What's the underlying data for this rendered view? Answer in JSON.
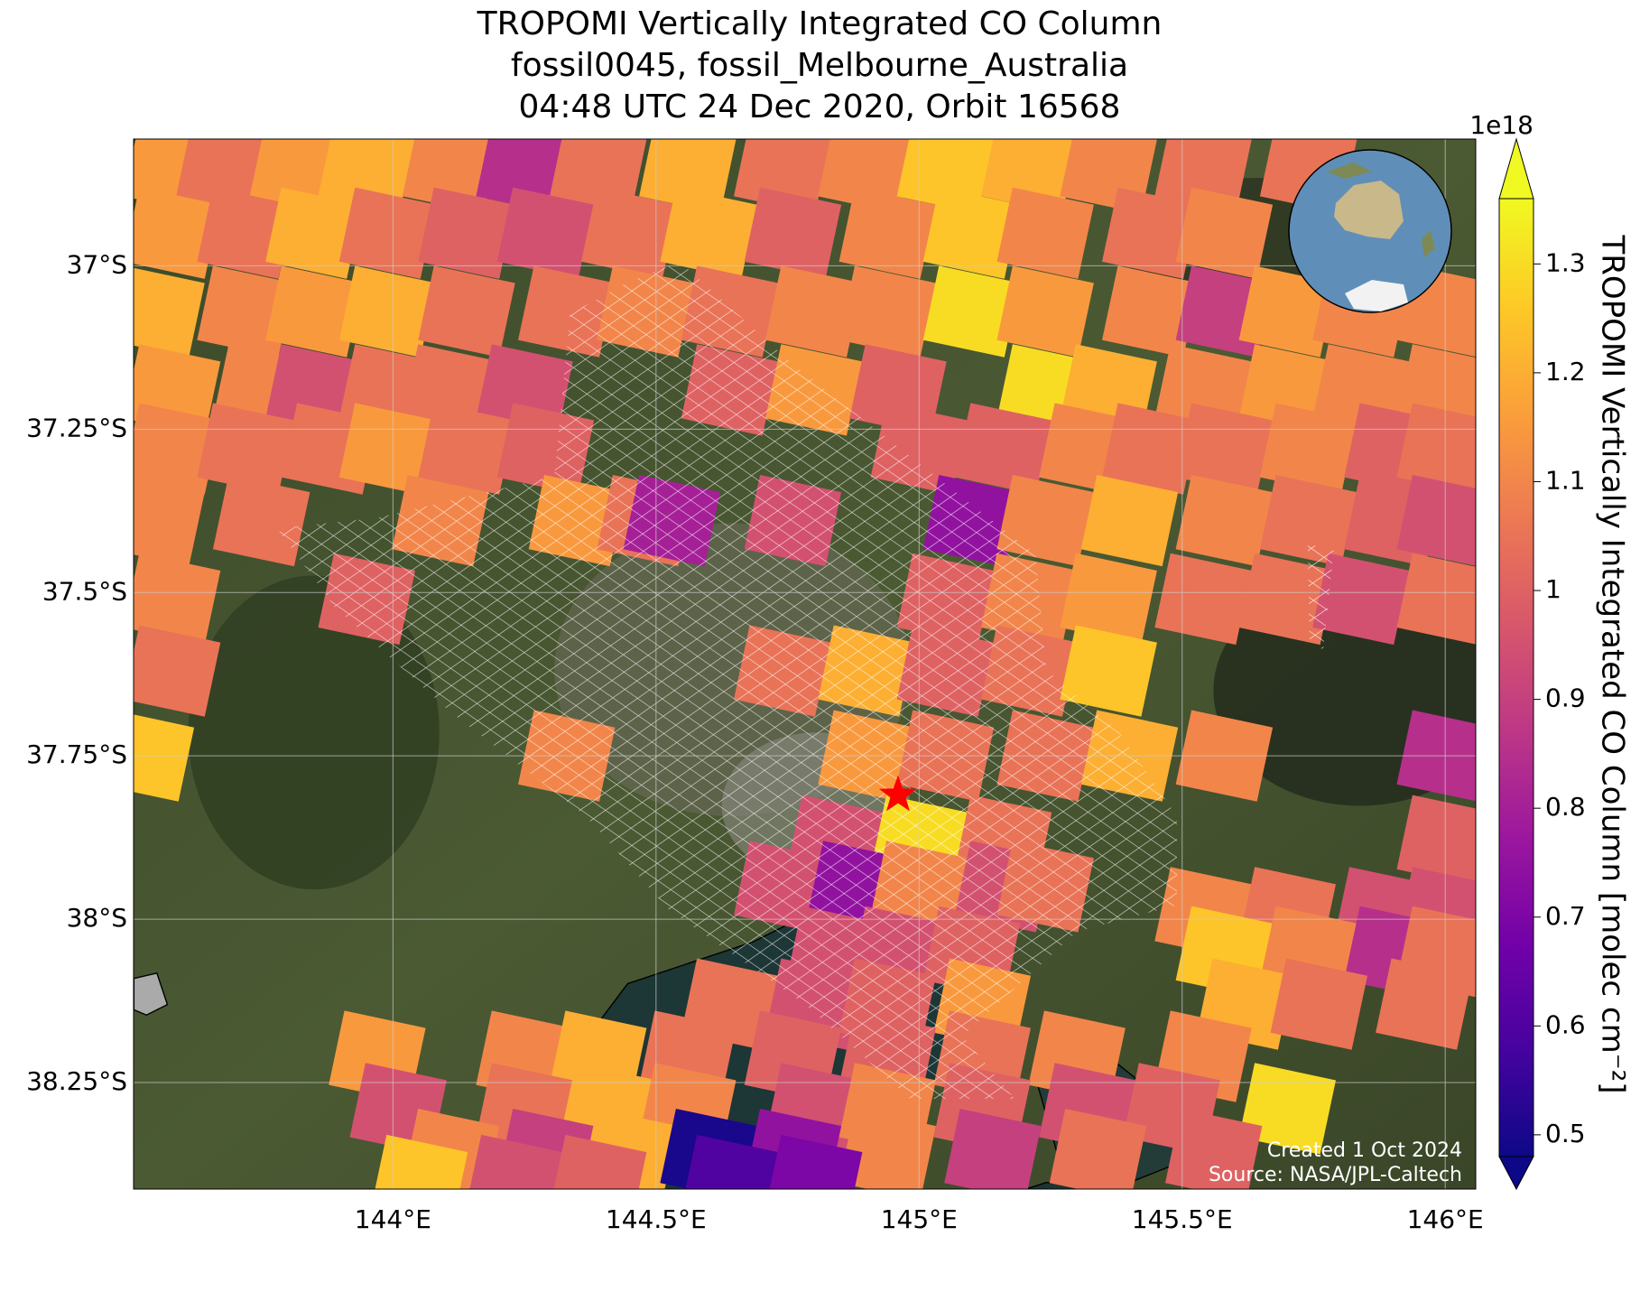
{
  "chart_data": {
    "type": "map",
    "title": [
      "TROPOMI Vertically Integrated CO Column",
      "fossil0045, fossil_Melbourne_Australia",
      "04:48 UTC 24 Dec 2020, Orbit 16568"
    ],
    "xlim": [
      143.507,
      146.058
    ],
    "ylim": [
      -38.413,
      -36.806
    ],
    "xticks": [
      {
        "value": 144,
        "label": "144°E"
      },
      {
        "value": 144.5,
        "label": "144.5°E"
      },
      {
        "value": 145,
        "label": "145°E"
      },
      {
        "value": 145.5,
        "label": "145.5°E"
      },
      {
        "value": 146,
        "label": "146°E"
      }
    ],
    "yticks": [
      {
        "value": -37,
        "label": "37°S"
      },
      {
        "value": -37.25,
        "label": "37.25°S"
      },
      {
        "value": -37.5,
        "label": "37.5°S"
      },
      {
        "value": -37.75,
        "label": "37.75°S"
      },
      {
        "value": -38,
        "label": "38°S"
      },
      {
        "value": -38.25,
        "label": "38.25°S"
      }
    ],
    "grid": true,
    "colormap": "plasma",
    "clim": [
      0.48,
      1.36
    ],
    "cticks": [
      0.5,
      0.6,
      0.7,
      0.8,
      0.9,
      1.0,
      1.1,
      1.2,
      1.3
    ],
    "colorbar_offset": "1e18",
    "colorbar_label": "TROPOMI Vertically Integrated CO Column [molec cm⁻²]",
    "site": {
      "lon": 144.96,
      "lat": -37.81,
      "color": "#ff0000"
    },
    "credits": [
      "Created 1 Oct 2024",
      "Source: NASA/JPL-Caltech"
    ],
    "pixels": [
      [
        143.58,
        -36.85,
        1.15
      ],
      [
        143.68,
        -36.85,
        1.05
      ],
      [
        143.82,
        -36.85,
        1.15
      ],
      [
        143.95,
        -36.85,
        1.2
      ],
      [
        144.11,
        -36.85,
        1.1
      ],
      [
        144.25,
        -36.85,
        0.85
      ],
      [
        144.39,
        -36.85,
        1.05
      ],
      [
        144.56,
        -36.85,
        1.2
      ],
      [
        144.74,
        -36.85,
        1.05
      ],
      [
        144.9,
        -36.85,
        1.1
      ],
      [
        145.05,
        -36.85,
        1.25
      ],
      [
        145.21,
        -36.85,
        1.2
      ],
      [
        145.36,
        -36.85,
        1.1
      ],
      [
        145.54,
        -36.85,
        1.05
      ],
      [
        145.74,
        -36.85,
        1.05
      ],
      [
        143.58,
        -36.95,
        1.15
      ],
      [
        143.72,
        -36.95,
        1.05
      ],
      [
        143.85,
        -36.95,
        1.2
      ],
      [
        143.99,
        -36.95,
        1.05
      ],
      [
        144.14,
        -36.95,
        1.0
      ],
      [
        144.29,
        -36.95,
        0.95
      ],
      [
        144.45,
        -36.95,
        1.05
      ],
      [
        144.6,
        -36.95,
        1.2
      ],
      [
        144.76,
        -36.95,
        1.0
      ],
      [
        144.94,
        -36.95,
        1.1
      ],
      [
        145.1,
        -36.95,
        1.25
      ],
      [
        145.24,
        -36.95,
        1.1
      ],
      [
        145.44,
        -36.95,
        1.05
      ],
      [
        145.58,
        -36.95,
        1.1
      ],
      [
        143.55,
        -37.07,
        1.2
      ],
      [
        143.72,
        -37.07,
        1.1
      ],
      [
        143.85,
        -37.07,
        1.15
      ],
      [
        143.99,
        -37.07,
        1.2
      ],
      [
        144.14,
        -37.07,
        1.05
      ],
      [
        144.33,
        -37.07,
        1.05
      ],
      [
        144.48,
        -37.07,
        1.1
      ],
      [
        144.64,
        -37.07,
        1.05
      ],
      [
        144.8,
        -37.07,
        1.1
      ],
      [
        144.94,
        -37.07,
        1.1
      ],
      [
        145.1,
        -37.07,
        1.3
      ],
      [
        145.24,
        -37.07,
        1.15
      ],
      [
        145.44,
        -37.07,
        1.1
      ],
      [
        145.58,
        -37.07,
        0.9
      ],
      [
        145.7,
        -37.07,
        1.15
      ],
      [
        145.84,
        -37.07,
        1.1
      ],
      [
        146.0,
        -37.07,
        1.1
      ],
      [
        143.58,
        -37.19,
        1.15
      ],
      [
        143.75,
        -37.19,
        1.1
      ],
      [
        143.85,
        -37.19,
        0.95
      ],
      [
        143.99,
        -37.19,
        1.05
      ],
      [
        144.11,
        -37.19,
        1.05
      ],
      [
        144.25,
        -37.19,
        0.95
      ],
      [
        144.64,
        -37.19,
        1.0
      ],
      [
        144.8,
        -37.19,
        1.15
      ],
      [
        144.96,
        -37.19,
        1.0
      ],
      [
        145.24,
        -37.19,
        1.3
      ],
      [
        145.36,
        -37.19,
        1.2
      ],
      [
        145.54,
        -37.19,
        1.1
      ],
      [
        145.7,
        -37.19,
        1.15
      ],
      [
        145.84,
        -37.19,
        1.1
      ],
      [
        146.0,
        -37.19,
        1.1
      ],
      [
        143.58,
        -37.28,
        1.1
      ],
      [
        143.72,
        -37.28,
        1.05
      ],
      [
        143.88,
        -37.28,
        1.05
      ],
      [
        143.99,
        -37.28,
        1.15
      ],
      [
        144.14,
        -37.28,
        1.05
      ],
      [
        144.29,
        -37.28,
        1.0
      ],
      [
        145.0,
        -37.28,
        1.0
      ],
      [
        145.16,
        -37.28,
        1.0
      ],
      [
        145.32,
        -37.28,
        1.1
      ],
      [
        145.44,
        -37.28,
        1.05
      ],
      [
        145.58,
        -37.28,
        1.05
      ],
      [
        145.74,
        -37.28,
        1.1
      ],
      [
        145.9,
        -37.28,
        1.0
      ],
      [
        146.0,
        -37.28,
        1.05
      ],
      [
        143.55,
        -37.39,
        1.1
      ],
      [
        143.75,
        -37.39,
        1.05
      ],
      [
        144.09,
        -37.39,
        1.1
      ],
      [
        144.35,
        -37.39,
        1.15
      ],
      [
        144.48,
        -37.39,
        1.05
      ],
      [
        144.53,
        -37.39,
        0.8
      ],
      [
        144.76,
        -37.39,
        0.95
      ],
      [
        145.1,
        -37.39,
        0.75
      ],
      [
        145.24,
        -37.39,
        1.1
      ],
      [
        145.4,
        -37.39,
        1.2
      ],
      [
        145.58,
        -37.39,
        1.1
      ],
      [
        145.74,
        -37.39,
        1.05
      ],
      [
        145.9,
        -37.39,
        1.0
      ],
      [
        146.0,
        -37.39,
        0.95
      ],
      [
        143.58,
        -37.51,
        1.1
      ],
      [
        143.95,
        -37.51,
        1.0
      ],
      [
        145.05,
        -37.51,
        1.0
      ],
      [
        145.21,
        -37.51,
        1.1
      ],
      [
        145.36,
        -37.51,
        1.15
      ],
      [
        145.54,
        -37.51,
        1.05
      ],
      [
        145.7,
        -37.51,
        1.05
      ],
      [
        145.84,
        -37.51,
        0.95
      ],
      [
        146.0,
        -37.51,
        1.05
      ],
      [
        143.58,
        -37.62,
        1.05
      ],
      [
        144.74,
        -37.62,
        1.05
      ],
      [
        144.9,
        -37.62,
        1.2
      ],
      [
        145.05,
        -37.62,
        1.0
      ],
      [
        145.21,
        -37.62,
        1.05
      ],
      [
        145.36,
        -37.62,
        1.25
      ],
      [
        143.53,
        -37.75,
        1.25
      ],
      [
        144.33,
        -37.75,
        1.1
      ],
      [
        144.9,
        -37.75,
        1.15
      ],
      [
        145.05,
        -37.75,
        1.05
      ],
      [
        145.24,
        -37.75,
        1.05
      ],
      [
        145.4,
        -37.75,
        1.2
      ],
      [
        145.58,
        -37.75,
        1.1
      ],
      [
        146.0,
        -37.75,
        0.85
      ],
      [
        144.84,
        -37.88,
        0.95
      ],
      [
        145.0,
        -37.88,
        1.3
      ],
      [
        145.16,
        -37.88,
        1.05
      ],
      [
        146.0,
        -37.88,
        1.0
      ],
      [
        144.74,
        -37.95,
        0.95
      ],
      [
        144.88,
        -37.95,
        0.75
      ],
      [
        145.0,
        -37.95,
        1.1
      ],
      [
        145.16,
        -37.95,
        0.95
      ],
      [
        145.24,
        -37.95,
        1.05
      ],
      [
        145.54,
        -37.99,
        1.1
      ],
      [
        145.7,
        -37.99,
        1.05
      ],
      [
        145.88,
        -37.99,
        0.95
      ],
      [
        146.0,
        -37.99,
        0.95
      ],
      [
        144.84,
        -38.05,
        0.95
      ],
      [
        144.96,
        -38.05,
        0.95
      ],
      [
        145.1,
        -38.05,
        1.0
      ],
      [
        145.58,
        -38.05,
        1.25
      ],
      [
        145.74,
        -38.05,
        1.1
      ],
      [
        145.9,
        -38.05,
        0.85
      ],
      [
        146.0,
        -38.05,
        1.05
      ],
      [
        144.64,
        -38.13,
        1.05
      ],
      [
        144.8,
        -38.13,
        0.95
      ],
      [
        144.94,
        -38.13,
        1.0
      ],
      [
        145.12,
        -38.13,
        1.15
      ],
      [
        145.62,
        -38.13,
        1.2
      ],
      [
        145.76,
        -38.13,
        1.05
      ],
      [
        145.96,
        -38.13,
        1.05
      ],
      [
        143.97,
        -38.21,
        1.15
      ],
      [
        144.25,
        -38.21,
        1.1
      ],
      [
        144.39,
        -38.21,
        1.2
      ],
      [
        144.56,
        -38.21,
        1.05
      ],
      [
        144.76,
        -38.21,
        1.0
      ],
      [
        144.94,
        -38.21,
        1.0
      ],
      [
        145.12,
        -38.21,
        1.05
      ],
      [
        145.3,
        -38.21,
        1.1
      ],
      [
        145.54,
        -38.21,
        1.1
      ],
      [
        144.01,
        -38.29,
        0.95
      ],
      [
        144.25,
        -38.29,
        1.05
      ],
      [
        144.41,
        -38.29,
        1.2
      ],
      [
        144.56,
        -38.29,
        1.1
      ],
      [
        144.8,
        -38.29,
        0.95
      ],
      [
        144.94,
        -38.29,
        1.1
      ],
      [
        145.12,
        -38.29,
        1.0
      ],
      [
        145.32,
        -38.29,
        0.95
      ],
      [
        145.48,
        -38.29,
        1.0
      ],
      [
        145.7,
        -38.29,
        1.3
      ],
      [
        144.11,
        -38.36,
        1.1
      ],
      [
        144.29,
        -38.36,
        0.9
      ],
      [
        144.45,
        -38.36,
        1.2
      ],
      [
        144.6,
        -38.36,
        0.5
      ],
      [
        144.76,
        -38.36,
        0.75
      ],
      [
        144.94,
        -38.36,
        1.1
      ],
      [
        145.14,
        -38.36,
        0.9
      ],
      [
        145.34,
        -38.36,
        1.05
      ],
      [
        145.56,
        -38.36,
        1.0
      ],
      [
        144.05,
        -38.4,
        1.25
      ],
      [
        144.23,
        -38.4,
        0.95
      ],
      [
        144.39,
        -38.4,
        1.0
      ],
      [
        144.64,
        -38.4,
        0.6
      ],
      [
        144.8,
        -38.4,
        0.7
      ]
    ]
  }
}
